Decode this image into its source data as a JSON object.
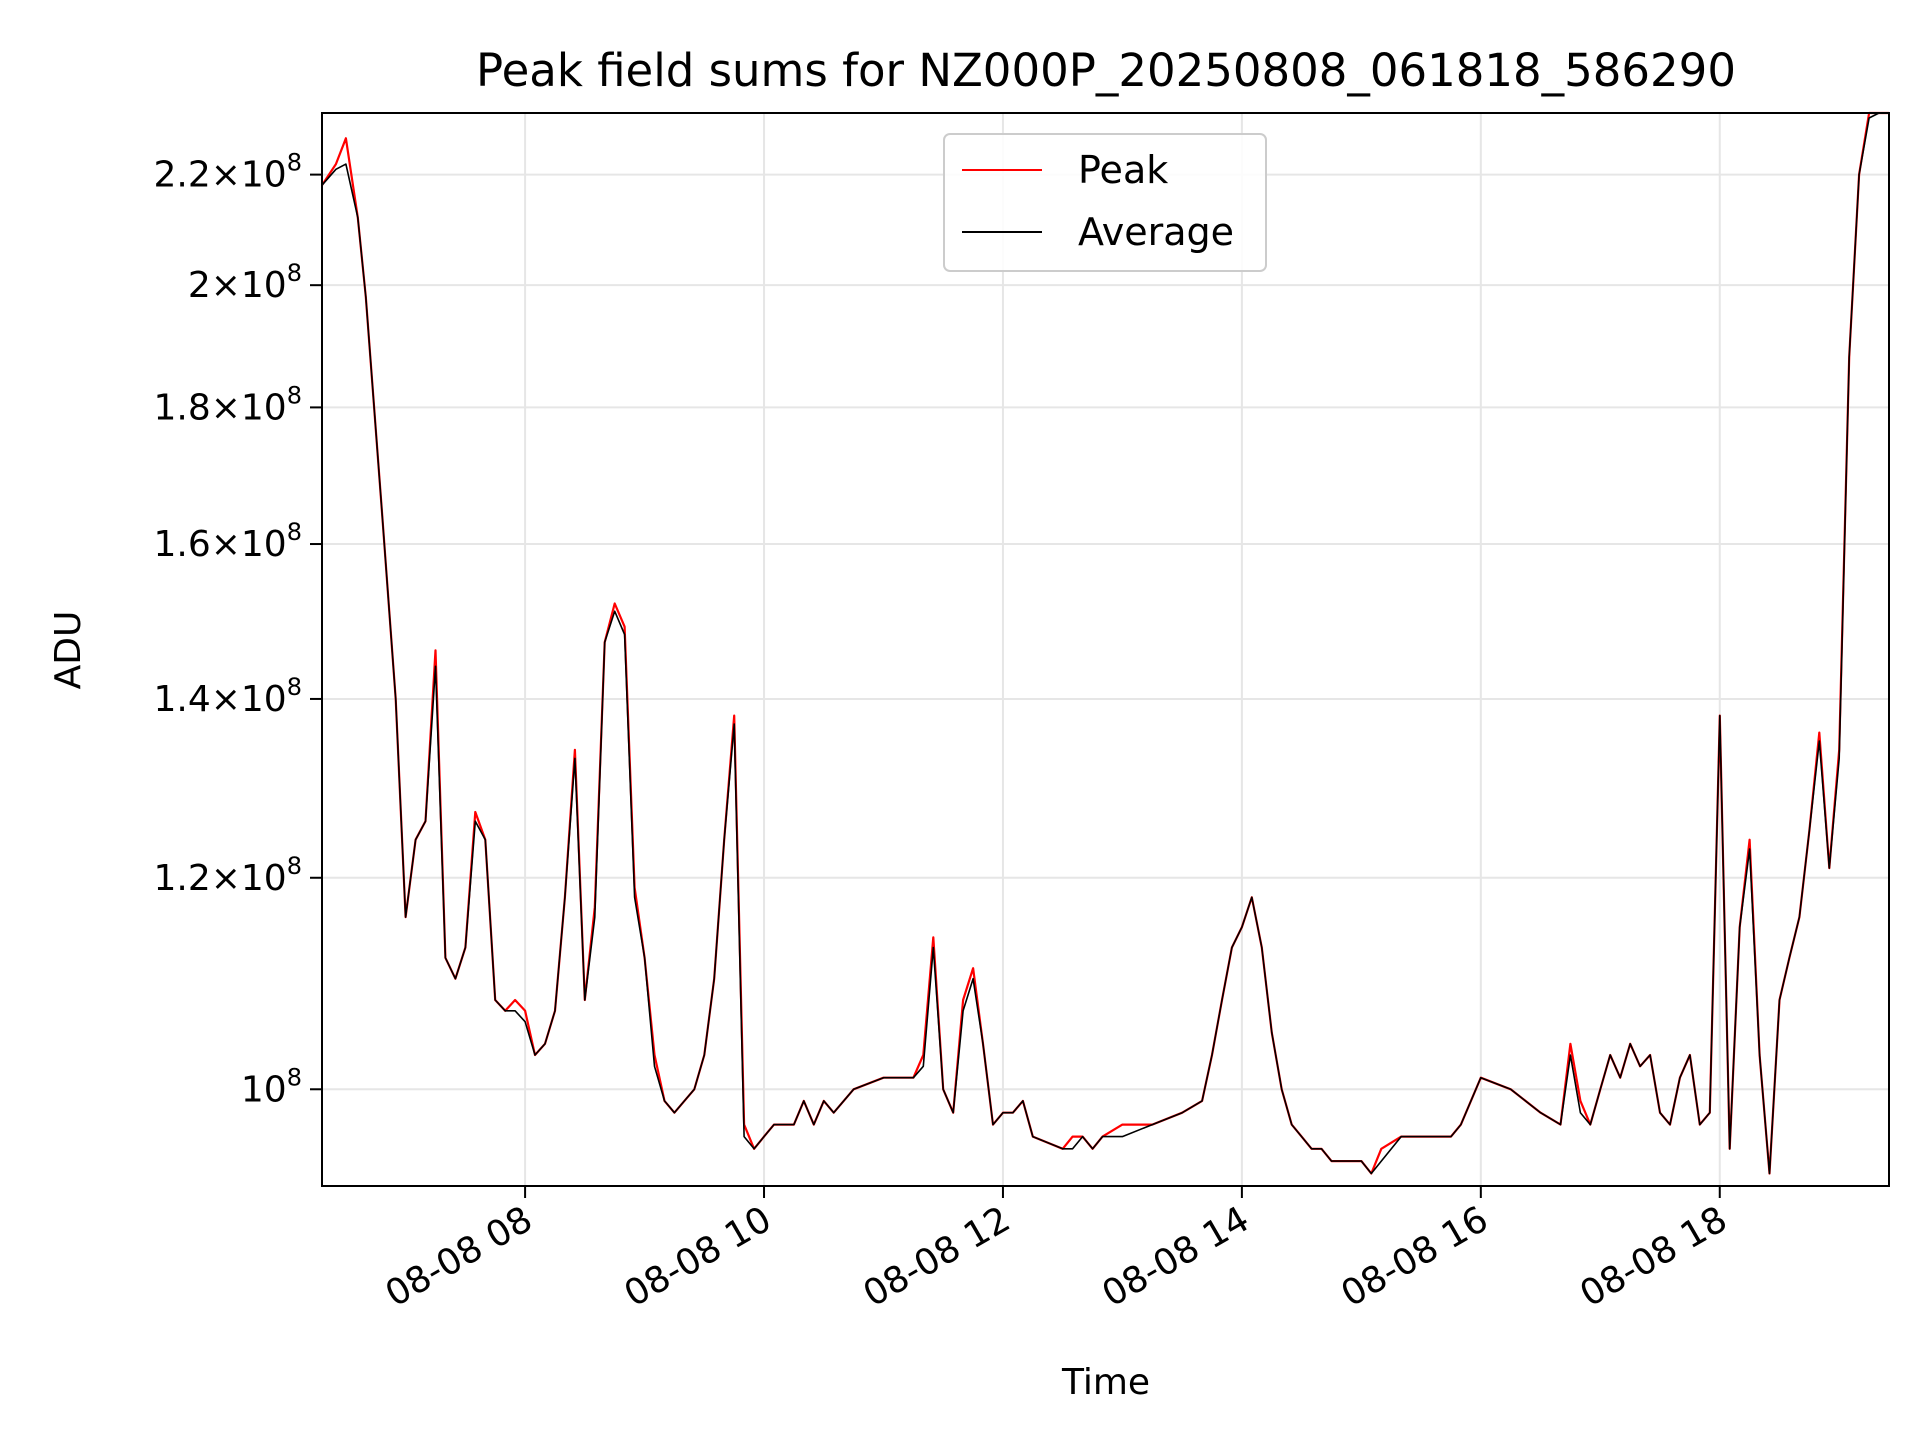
{
  "chart_data": {
    "type": "line",
    "title": "Peak field sums for NZ000P_20250808_061818_586290",
    "xlabel": "Time",
    "ylabel": "ADU",
    "y_scale": "log",
    "ylim": [
      92000000,
      232000000
    ],
    "xlim": [
      "08-08 06:18",
      "08-08 19:25"
    ],
    "x_ticks": [
      "08-08 08",
      "08-08 10",
      "08-08 12",
      "08-08 14",
      "08-08 16",
      "08-08 18"
    ],
    "x_tick_values": [
      "08-08 08:00",
      "08-08 10:00",
      "08-08 12:00",
      "08-08 14:00",
      "08-08 16:00",
      "08-08 18:00"
    ],
    "y_ticks": [
      {
        "value": 100000000,
        "mantissa": "",
        "base": "10",
        "exponent": "8"
      },
      {
        "value": 120000000,
        "mantissa": "1.2",
        "base": "10",
        "exponent": "8"
      },
      {
        "value": 140000000,
        "mantissa": "1.4",
        "base": "10",
        "exponent": "8"
      },
      {
        "value": 160000000,
        "mantissa": "1.6",
        "base": "10",
        "exponent": "8"
      },
      {
        "value": 180000000,
        "mantissa": "1.8",
        "base": "10",
        "exponent": "8"
      },
      {
        "value": 200000000,
        "mantissa": "2",
        "base": "10",
        "exponent": "8"
      },
      {
        "value": 220000000,
        "mantissa": "2.2",
        "base": "10",
        "exponent": "8"
      }
    ],
    "grid": true,
    "legend": {
      "placement": "upper-center"
    },
    "x": [
      "08-08 06:18",
      "08-08 06:25",
      "08-08 06:30",
      "08-08 06:36",
      "08-08 06:40",
      "08-08 06:48",
      "08-08 06:55",
      "08-08 07:00",
      "08-08 07:05",
      "08-08 07:10",
      "08-08 07:15",
      "08-08 07:20",
      "08-08 07:25",
      "08-08 07:30",
      "08-08 07:35",
      "08-08 07:40",
      "08-08 07:45",
      "08-08 07:50",
      "08-08 07:55",
      "08-08 08:00",
      "08-08 08:05",
      "08-08 08:10",
      "08-08 08:15",
      "08-08 08:20",
      "08-08 08:25",
      "08-08 08:30",
      "08-08 08:35",
      "08-08 08:40",
      "08-08 08:45",
      "08-08 08:50",
      "08-08 08:55",
      "08-08 09:00",
      "08-08 09:05",
      "08-08 09:10",
      "08-08 09:15",
      "08-08 09:20",
      "08-08 09:25",
      "08-08 09:30",
      "08-08 09:35",
      "08-08 09:40",
      "08-08 09:45",
      "08-08 09:50",
      "08-08 09:55",
      "08-08 10:00",
      "08-08 10:05",
      "08-08 10:10",
      "08-08 10:15",
      "08-08 10:20",
      "08-08 10:25",
      "08-08 10:30",
      "08-08 10:35",
      "08-08 10:45",
      "08-08 11:00",
      "08-08 11:15",
      "08-08 11:20",
      "08-08 11:25",
      "08-08 11:30",
      "08-08 11:35",
      "08-08 11:40",
      "08-08 11:45",
      "08-08 11:50",
      "08-08 11:55",
      "08-08 12:00",
      "08-08 12:05",
      "08-08 12:10",
      "08-08 12:15",
      "08-08 12:30",
      "08-08 12:35",
      "08-08 12:40",
      "08-08 12:45",
      "08-08 12:50",
      "08-08 13:00",
      "08-08 13:15",
      "08-08 13:30",
      "08-08 13:40",
      "08-08 13:45",
      "08-08 13:50",
      "08-08 13:55",
      "08-08 14:00",
      "08-08 14:05",
      "08-08 14:10",
      "08-08 14:15",
      "08-08 14:20",
      "08-08 14:25",
      "08-08 14:30",
      "08-08 14:35",
      "08-08 14:40",
      "08-08 14:45",
      "08-08 14:50",
      "08-08 15:00",
      "08-08 15:05",
      "08-08 15:10",
      "08-08 15:20",
      "08-08 15:30",
      "08-08 15:45",
      "08-08 15:50",
      "08-08 16:00",
      "08-08 16:15",
      "08-08 16:30",
      "08-08 16:40",
      "08-08 16:45",
      "08-08 16:50",
      "08-08 16:55",
      "08-08 17:00",
      "08-08 17:05",
      "08-08 17:10",
      "08-08 17:15",
      "08-08 17:20",
      "08-08 17:25",
      "08-08 17:30",
      "08-08 17:35",
      "08-08 17:40",
      "08-08 17:45",
      "08-08 17:50",
      "08-08 17:55",
      "08-08 18:00",
      "08-08 18:05",
      "08-08 18:10",
      "08-08 18:15",
      "08-08 18:20",
      "08-08 18:25",
      "08-08 18:30",
      "08-08 18:35",
      "08-08 18:40",
      "08-08 18:45",
      "08-08 18:50",
      "08-08 18:55",
      "08-08 19:00",
      "08-08 19:05",
      "08-08 19:10",
      "08-08 19:15",
      "08-08 19:20",
      "08-08 19:25"
    ],
    "series": [
      {
        "name": "Peak",
        "color": "#ff0000",
        "values": [
          218,
          222,
          227,
          212,
          198,
          165,
          140,
          116,
          124,
          126,
          146,
          112,
          110,
          113,
          127,
          124,
          108,
          107,
          108,
          107,
          103,
          104,
          107,
          118,
          134,
          108,
          117,
          147,
          152,
          149,
          119,
          112,
          103,
          99,
          98,
          99,
          100,
          103,
          110,
          124,
          138,
          97,
          95,
          96,
          97,
          97,
          97,
          99,
          97,
          99,
          98,
          100,
          101,
          101,
          103,
          114,
          100,
          98,
          108,
          111,
          104,
          97,
          98,
          98,
          99,
          96,
          95,
          96,
          96,
          95,
          96,
          97,
          97,
          98,
          99,
          103,
          108,
          113,
          115,
          118,
          113,
          105,
          100,
          97,
          96,
          95,
          95,
          94,
          94,
          94,
          93,
          95,
          96,
          96,
          96,
          97,
          101,
          100,
          98,
          97,
          104,
          99,
          97,
          100,
          103,
          101,
          104,
          102,
          103,
          98,
          97,
          101,
          103,
          97,
          98,
          138,
          95,
          115,
          124,
          103,
          93,
          108,
          112,
          116,
          125,
          136,
          121,
          134,
          188,
          220,
          232,
          232,
          232
        ]
      },
      {
        "name": "Average",
        "color": "#000000",
        "values": [
          218,
          221,
          222,
          212,
          198,
          165,
          140,
          116,
          124,
          126,
          144,
          112,
          110,
          113,
          126,
          124,
          108,
          107,
          107,
          106,
          103,
          104,
          107,
          118,
          133,
          108,
          116,
          147,
          151,
          148,
          118,
          112,
          102,
          99,
          98,
          99,
          100,
          103,
          110,
          124,
          137,
          96,
          95,
          96,
          97,
          97,
          97,
          99,
          97,
          99,
          98,
          100,
          101,
          101,
          102,
          113,
          100,
          98,
          107,
          110,
          104,
          97,
          98,
          98,
          99,
          96,
          95,
          95,
          96,
          95,
          96,
          96,
          97,
          98,
          99,
          103,
          108,
          113,
          115,
          118,
          113,
          105,
          100,
          97,
          96,
          95,
          95,
          94,
          94,
          94,
          93,
          94,
          96,
          96,
          96,
          97,
          101,
          100,
          98,
          97,
          103,
          98,
          97,
          100,
          103,
          101,
          104,
          102,
          103,
          98,
          97,
          101,
          103,
          97,
          98,
          138,
          95,
          115,
          123,
          103,
          93,
          108,
          112,
          116,
          125,
          135,
          121,
          133,
          188,
          220,
          231,
          232,
          232
        ]
      }
    ]
  }
}
